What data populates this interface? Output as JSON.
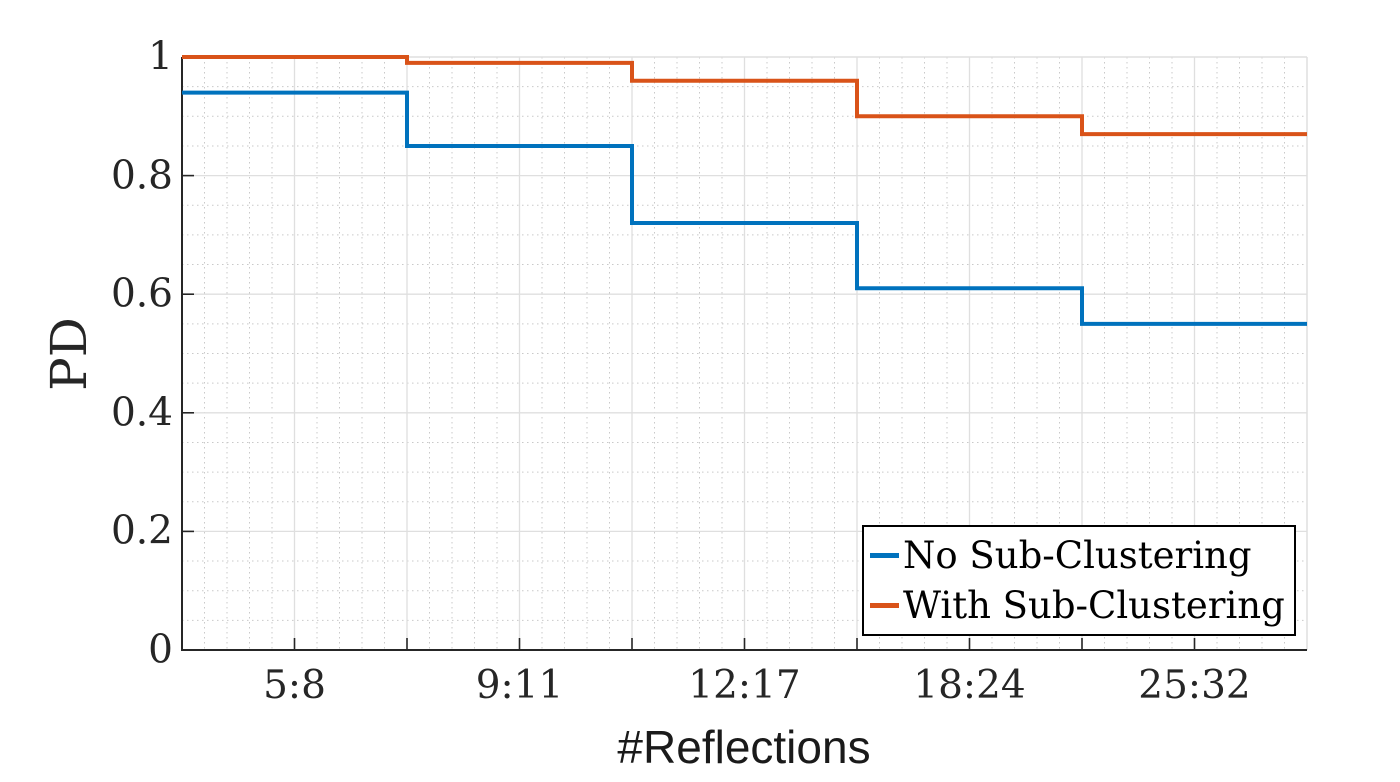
{
  "figure": {
    "background": "#ffffff",
    "text_color": "#262626",
    "spine_dark_color": "#262626",
    "spine_light_color": "#dfdfdf",
    "major_grid_color": "#dfdfdf",
    "minor_grid_color": "#c9c9c9"
  },
  "chart_data": {
    "type": "line",
    "subtype": "stairs",
    "title": "",
    "xlabel": "#Reflections",
    "ylabel": "PD",
    "categories": [
      "5:8",
      "9:11",
      "12:17",
      "18:24",
      "25:32"
    ],
    "series": [
      {
        "name": "No Sub-Clustering",
        "color": "#0072BD",
        "values": [
          0.94,
          0.85,
          0.72,
          0.61,
          0.55
        ]
      },
      {
        "name": "With Sub-Clustering",
        "color": "#D95319",
        "values": [
          1.0,
          0.99,
          0.96,
          0.9,
          0.87
        ]
      }
    ],
    "ylim": [
      0,
      1
    ],
    "yticks": [
      0,
      0.2,
      0.4,
      0.6,
      0.8,
      1
    ],
    "ytick_labels": [
      "0",
      "0.2",
      "0.4",
      "0.6",
      "0.8",
      "1"
    ],
    "grid": {
      "major": true,
      "minor": true,
      "minor_y_step": 0.05,
      "minor_x_step_units": 0.2
    },
    "legend": {
      "position": "bottom-right",
      "entries": [
        "No Sub-Clustering",
        "With Sub-Clustering"
      ]
    }
  }
}
